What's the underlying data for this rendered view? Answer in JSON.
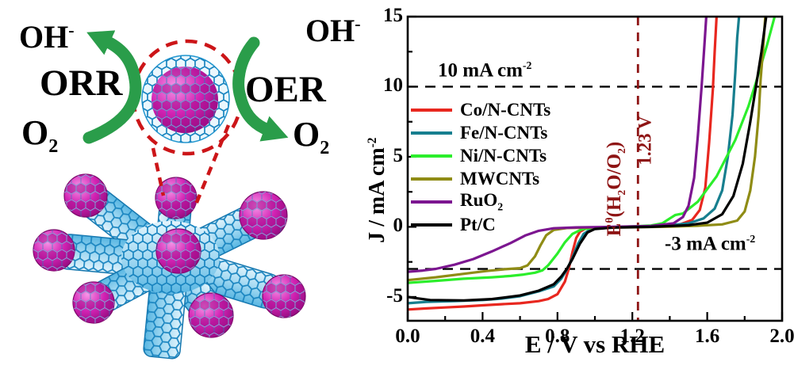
{
  "diagram": {
    "labels": {
      "oh_left_parts": [
        {
          "t": "OH"
        },
        {
          "t": "-",
          "pos": "sup"
        }
      ],
      "orr": "ORR",
      "o2_left_parts": [
        {
          "t": "O"
        },
        {
          "t": "2",
          "pos": "sub"
        }
      ],
      "oh_right_parts": [
        {
          "t": "OH"
        },
        {
          "t": "-",
          "pos": "sup"
        }
      ],
      "oer": "OER",
      "o2_right_parts": [
        {
          "t": "O"
        },
        {
          "t": "2",
          "pos": "sub"
        }
      ]
    },
    "colors": {
      "arrow_green": "#2a9d4a",
      "callout_red": "#cc1518",
      "tube_blue": "#1a85c0",
      "particle_magenta": "#cc17ad"
    }
  },
  "chart_data": {
    "type": "line",
    "title": "",
    "xlabel": "E / V vs RHE",
    "ylabel_parts": [
      {
        "t": "J / mA cm"
      },
      {
        "t": "-2",
        "pos": "sup"
      }
    ],
    "xlim": [
      0,
      2.0
    ],
    "ylim": [
      -6.7,
      15
    ],
    "x_ticks": [
      0.0,
      0.4,
      0.8,
      1.2,
      1.6,
      2.0
    ],
    "x_tick_labels": [
      "0.0",
      "0.4",
      "0.8",
      "1.2",
      "1.6",
      "2.0"
    ],
    "x_minor_ticks": [
      0.2,
      0.6,
      1.0,
      1.4,
      1.8
    ],
    "y_ticks": [
      -5,
      0,
      5,
      10,
      15
    ],
    "y_tick_labels": [
      "-5",
      "0",
      "5",
      "10",
      "15"
    ],
    "y_minor_ticks": [
      -2.5,
      2.5,
      7.5,
      12.5
    ],
    "grid": false,
    "legend_position": "upper-left-inside",
    "series": [
      {
        "name_parts": [
          {
            "t": "Co/N-CNTs"
          }
        ],
        "color": "#e8271f",
        "points": [
          [
            0,
            -5.9
          ],
          [
            0.1,
            -5.82
          ],
          [
            0.2,
            -5.75
          ],
          [
            0.3,
            -5.68
          ],
          [
            0.4,
            -5.6
          ],
          [
            0.5,
            -5.52
          ],
          [
            0.6,
            -5.45
          ],
          [
            0.7,
            -5.3
          ],
          [
            0.75,
            -5.15
          ],
          [
            0.8,
            -4.8
          ],
          [
            0.84,
            -3.9
          ],
          [
            0.86,
            -3.0
          ],
          [
            0.88,
            -1.8
          ],
          [
            0.9,
            -0.8
          ],
          [
            0.92,
            -0.35
          ],
          [
            0.95,
            -0.12
          ],
          [
            1.0,
            -0.06
          ],
          [
            1.1,
            -0.03
          ],
          [
            1.25,
            0.02
          ],
          [
            1.35,
            0.05
          ],
          [
            1.45,
            0.15
          ],
          [
            1.52,
            0.5
          ],
          [
            1.56,
            1.2
          ],
          [
            1.59,
            2.8
          ],
          [
            1.61,
            6.0
          ],
          [
            1.63,
            9.8
          ],
          [
            1.64,
            12.5
          ],
          [
            1.65,
            15
          ]
        ]
      },
      {
        "name_parts": [
          {
            "t": "Fe/N-CNTs"
          }
        ],
        "color": "#177f8f",
        "points": [
          [
            0,
            -5.45
          ],
          [
            0.1,
            -5.35
          ],
          [
            0.25,
            -5.3
          ],
          [
            0.4,
            -5.22
          ],
          [
            0.5,
            -5.12
          ],
          [
            0.6,
            -4.95
          ],
          [
            0.7,
            -4.6
          ],
          [
            0.78,
            -4.25
          ],
          [
            0.82,
            -3.7
          ],
          [
            0.85,
            -3.05
          ],
          [
            0.88,
            -2.2
          ],
          [
            0.91,
            -1.2
          ],
          [
            0.94,
            -0.5
          ],
          [
            0.98,
            -0.15
          ],
          [
            1.05,
            -0.05
          ],
          [
            1.2,
            0
          ],
          [
            1.35,
            0.05
          ],
          [
            1.5,
            0.25
          ],
          [
            1.58,
            0.6
          ],
          [
            1.64,
            1.3
          ],
          [
            1.68,
            2.6
          ],
          [
            1.71,
            5.0
          ],
          [
            1.735,
            8.0
          ],
          [
            1.75,
            11.0
          ],
          [
            1.76,
            13.5
          ],
          [
            1.77,
            15
          ]
        ]
      },
      {
        "name_parts": [
          {
            "t": "Ni/N-CNTs"
          }
        ],
        "color": "#2bee2b",
        "points": [
          [
            0,
            -4.0
          ],
          [
            0.15,
            -3.85
          ],
          [
            0.3,
            -3.7
          ],
          [
            0.45,
            -3.6
          ],
          [
            0.55,
            -3.5
          ],
          [
            0.62,
            -3.4
          ],
          [
            0.68,
            -3.27
          ],
          [
            0.72,
            -3.1
          ],
          [
            0.75,
            -2.75
          ],
          [
            0.8,
            -1.9
          ],
          [
            0.84,
            -1.1
          ],
          [
            0.88,
            -0.5
          ],
          [
            0.93,
            -0.18
          ],
          [
            1.0,
            -0.06
          ],
          [
            1.15,
            0
          ],
          [
            1.3,
            0.1
          ],
          [
            1.36,
            0.25
          ],
          [
            1.4,
            0.6
          ],
          [
            1.43,
            0.85
          ],
          [
            1.47,
            0.95
          ],
          [
            1.55,
            1.8
          ],
          [
            1.65,
            3.6
          ],
          [
            1.75,
            6.2
          ],
          [
            1.82,
            8.6
          ],
          [
            1.86,
            10.3
          ],
          [
            1.92,
            13.0
          ],
          [
            1.96,
            15
          ]
        ]
      },
      {
        "name_parts": [
          {
            "t": "MWCNTs"
          }
        ],
        "color": "#8f8c15",
        "points": [
          [
            0,
            -3.8
          ],
          [
            0.15,
            -3.6
          ],
          [
            0.3,
            -3.35
          ],
          [
            0.42,
            -3.15
          ],
          [
            0.52,
            -3.02
          ],
          [
            0.6,
            -2.95
          ],
          [
            0.64,
            -2.75
          ],
          [
            0.68,
            -2.1
          ],
          [
            0.71,
            -1.3
          ],
          [
            0.74,
            -0.6
          ],
          [
            0.78,
            -0.22
          ],
          [
            0.85,
            -0.08
          ],
          [
            1.0,
            -0.05
          ],
          [
            1.2,
            -0.03
          ],
          [
            1.4,
            0.02
          ],
          [
            1.55,
            0.08
          ],
          [
            1.68,
            0.18
          ],
          [
            1.76,
            0.45
          ],
          [
            1.8,
            1.1
          ],
          [
            1.83,
            2.6
          ],
          [
            1.855,
            5.0
          ],
          [
            1.875,
            8.0
          ],
          [
            1.885,
            10.5
          ],
          [
            1.9,
            13.0
          ],
          [
            1.91,
            15
          ]
        ]
      },
      {
        "name_parts": [
          {
            "t": "RuO"
          },
          {
            "t": "2",
            "pos": "sub"
          }
        ],
        "color": "#7c1690",
        "points": [
          [
            0,
            -3.2
          ],
          [
            0.08,
            -3.12
          ],
          [
            0.15,
            -3.0
          ],
          [
            0.25,
            -2.7
          ],
          [
            0.35,
            -2.3
          ],
          [
            0.45,
            -1.75
          ],
          [
            0.55,
            -1.15
          ],
          [
            0.63,
            -0.6
          ],
          [
            0.7,
            -0.28
          ],
          [
            0.78,
            -0.1
          ],
          [
            0.9,
            -0.04
          ],
          [
            1.1,
            0
          ],
          [
            1.3,
            0.06
          ],
          [
            1.42,
            0.25
          ],
          [
            1.47,
            0.7
          ],
          [
            1.5,
            1.5
          ],
          [
            1.53,
            3.5
          ],
          [
            1.55,
            6.5
          ],
          [
            1.57,
            10.0
          ],
          [
            1.585,
            13.0
          ],
          [
            1.595,
            15
          ]
        ]
      },
      {
        "name_parts": [
          {
            "t": "Pt/C"
          }
        ],
        "color": "#000000",
        "points": [
          [
            0,
            -5.0
          ],
          [
            0.04,
            -5.08
          ],
          [
            0.12,
            -5.22
          ],
          [
            0.3,
            -5.25
          ],
          [
            0.45,
            -5.15
          ],
          [
            0.6,
            -4.9
          ],
          [
            0.7,
            -4.55
          ],
          [
            0.78,
            -4.1
          ],
          [
            0.82,
            -3.55
          ],
          [
            0.85,
            -3.0
          ],
          [
            0.88,
            -2.3
          ],
          [
            0.92,
            -1.2
          ],
          [
            0.96,
            -0.4
          ],
          [
            1.0,
            -0.15
          ],
          [
            1.1,
            -0.05
          ],
          [
            1.3,
            0
          ],
          [
            1.5,
            0.12
          ],
          [
            1.6,
            0.3
          ],
          [
            1.68,
            0.9
          ],
          [
            1.74,
            2.2
          ],
          [
            1.79,
            4.5
          ],
          [
            1.83,
            7.5
          ],
          [
            1.86,
            10.0
          ],
          [
            1.89,
            12.5
          ],
          [
            1.915,
            15
          ]
        ]
      }
    ],
    "annotations": {
      "hlines": [
        {
          "y": 10,
          "color": "#000000",
          "label_parts": [
            {
              "t": "10 mA cm"
            },
            {
              "t": "-2",
              "pos": "sup"
            }
          ]
        },
        {
          "y": -3,
          "color": "#000000",
          "label_parts": [
            {
              "t": "-3 mA cm"
            },
            {
              "t": "-2",
              "pos": "sup"
            }
          ]
        }
      ],
      "vline": {
        "x": 1.23,
        "color": "#8e1414",
        "label1_parts": [
          {
            "t": "E"
          },
          {
            "t": "θ",
            "pos": "sup"
          },
          {
            "t": "(H"
          },
          {
            "t": "2",
            "pos": "sub"
          },
          {
            "t": "O/O"
          },
          {
            "t": "2",
            "pos": "sub"
          },
          {
            "t": ")"
          }
        ],
        "label2_parts": [
          {
            "t": "1.23 V"
          }
        ]
      }
    }
  }
}
